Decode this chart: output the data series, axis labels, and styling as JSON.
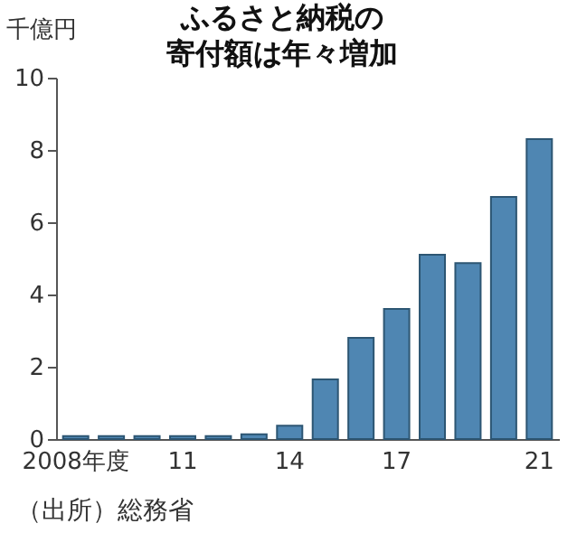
{
  "chart_data": {
    "type": "bar",
    "title": "ふるさと納税の寄付額は年々増加",
    "ylabel": "千億円",
    "categories": [
      "2008年度",
      null,
      null,
      "11",
      null,
      null,
      "14",
      null,
      null,
      "17",
      null,
      null,
      null,
      "21"
    ],
    "values": [
      0.08,
      0.08,
      0.08,
      0.08,
      0.08,
      0.13,
      0.37,
      1.65,
      2.8,
      3.6,
      5.1,
      4.87,
      6.7,
      8.3
    ],
    "color": "#4f86b2",
    "ylim": [
      0,
      10
    ],
    "yticks": [
      0,
      2,
      4,
      6,
      8,
      10
    ],
    "grid": false,
    "annotations": [
      "（出所）総務省"
    ]
  }
}
